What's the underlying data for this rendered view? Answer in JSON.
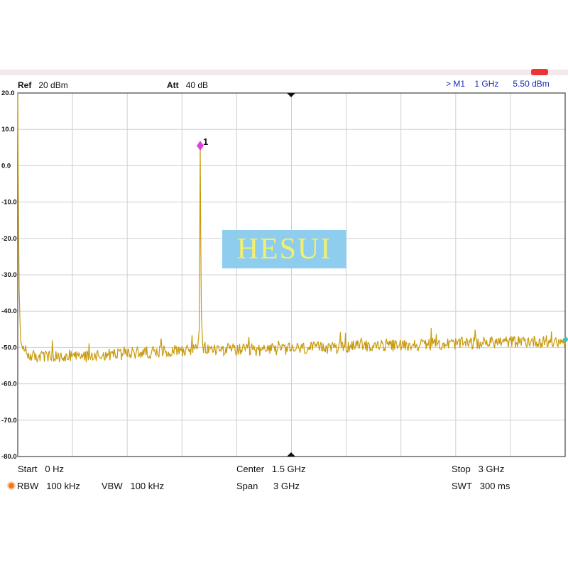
{
  "header": {
    "ref_label": "Ref",
    "ref_value": "20 dBm",
    "att_label": "Att",
    "att_value": "40 dB",
    "marker_readout": {
      "marker": "> M1",
      "freq": "1 GHz",
      "level": "5.50 dBm"
    }
  },
  "footer": {
    "start_label": "Start",
    "start_value": "0 Hz",
    "center_label": "Center",
    "center_value": "1.5 GHz",
    "stop_label": "Stop",
    "stop_value": "3 GHz",
    "rbw_label": "RBW",
    "rbw_value": "100 kHz",
    "vbw_label": "VBW",
    "vbw_value": "100 kHz",
    "span_label": "Span",
    "span_value": "3 GHz",
    "swt_label": "SWT",
    "swt_value": "300 ms"
  },
  "watermark": "HESUI",
  "colors": {
    "trace": "#c89a0e",
    "marker": "#e040e0",
    "grid": "#cfcfcf",
    "readout": "#1a2fb8"
  },
  "chart_data": {
    "type": "line",
    "x_unit": "GHz",
    "y_unit": "dBm",
    "xlim": [
      0,
      3
    ],
    "ylim": [
      -80,
      20
    ],
    "yticks": [
      20,
      10,
      0,
      -10,
      -20,
      -30,
      -40,
      -50,
      -60,
      -70,
      -80
    ],
    "ytick_labels": [
      "20.0",
      "10.0",
      "0.0",
      "-10.0",
      "-20.0",
      "-30.0",
      "-40.0",
      "-50.0",
      "-60.0",
      "-70.0",
      "-80.0"
    ],
    "x_divisions": 10,
    "grid": true,
    "series": [
      {
        "x": [
          0,
          0.006,
          0.015,
          0.03,
          0.08,
          0.15,
          0.25,
          0.35,
          0.45,
          0.55,
          0.65,
          0.75,
          0.85,
          0.95,
          0.985,
          0.995,
          1.0,
          1.005,
          1.015,
          1.05,
          1.15,
          1.3,
          1.45,
          1.6,
          1.75,
          1.9,
          2.05,
          2.2,
          2.35,
          2.5,
          2.65,
          2.8,
          2.95,
          3.0
        ],
        "y": [
          20,
          -30,
          -48,
          -51,
          -52.5,
          -52.5,
          -52.8,
          -52.5,
          -52,
          -51.8,
          -51.5,
          -51.2,
          -50.8,
          -50.5,
          -50.5,
          -45,
          5.5,
          -40,
          -50.3,
          -50.5,
          -50.5,
          -50.8,
          -50.5,
          -50.2,
          -50,
          -49.5,
          -49.5,
          -49.2,
          -49,
          -48.8,
          -48.5,
          -48.3,
          -48.5,
          -48.3
        ]
      }
    ],
    "markers": [
      {
        "label": "1",
        "x": 1.0,
        "y": 5.5
      }
    ]
  }
}
